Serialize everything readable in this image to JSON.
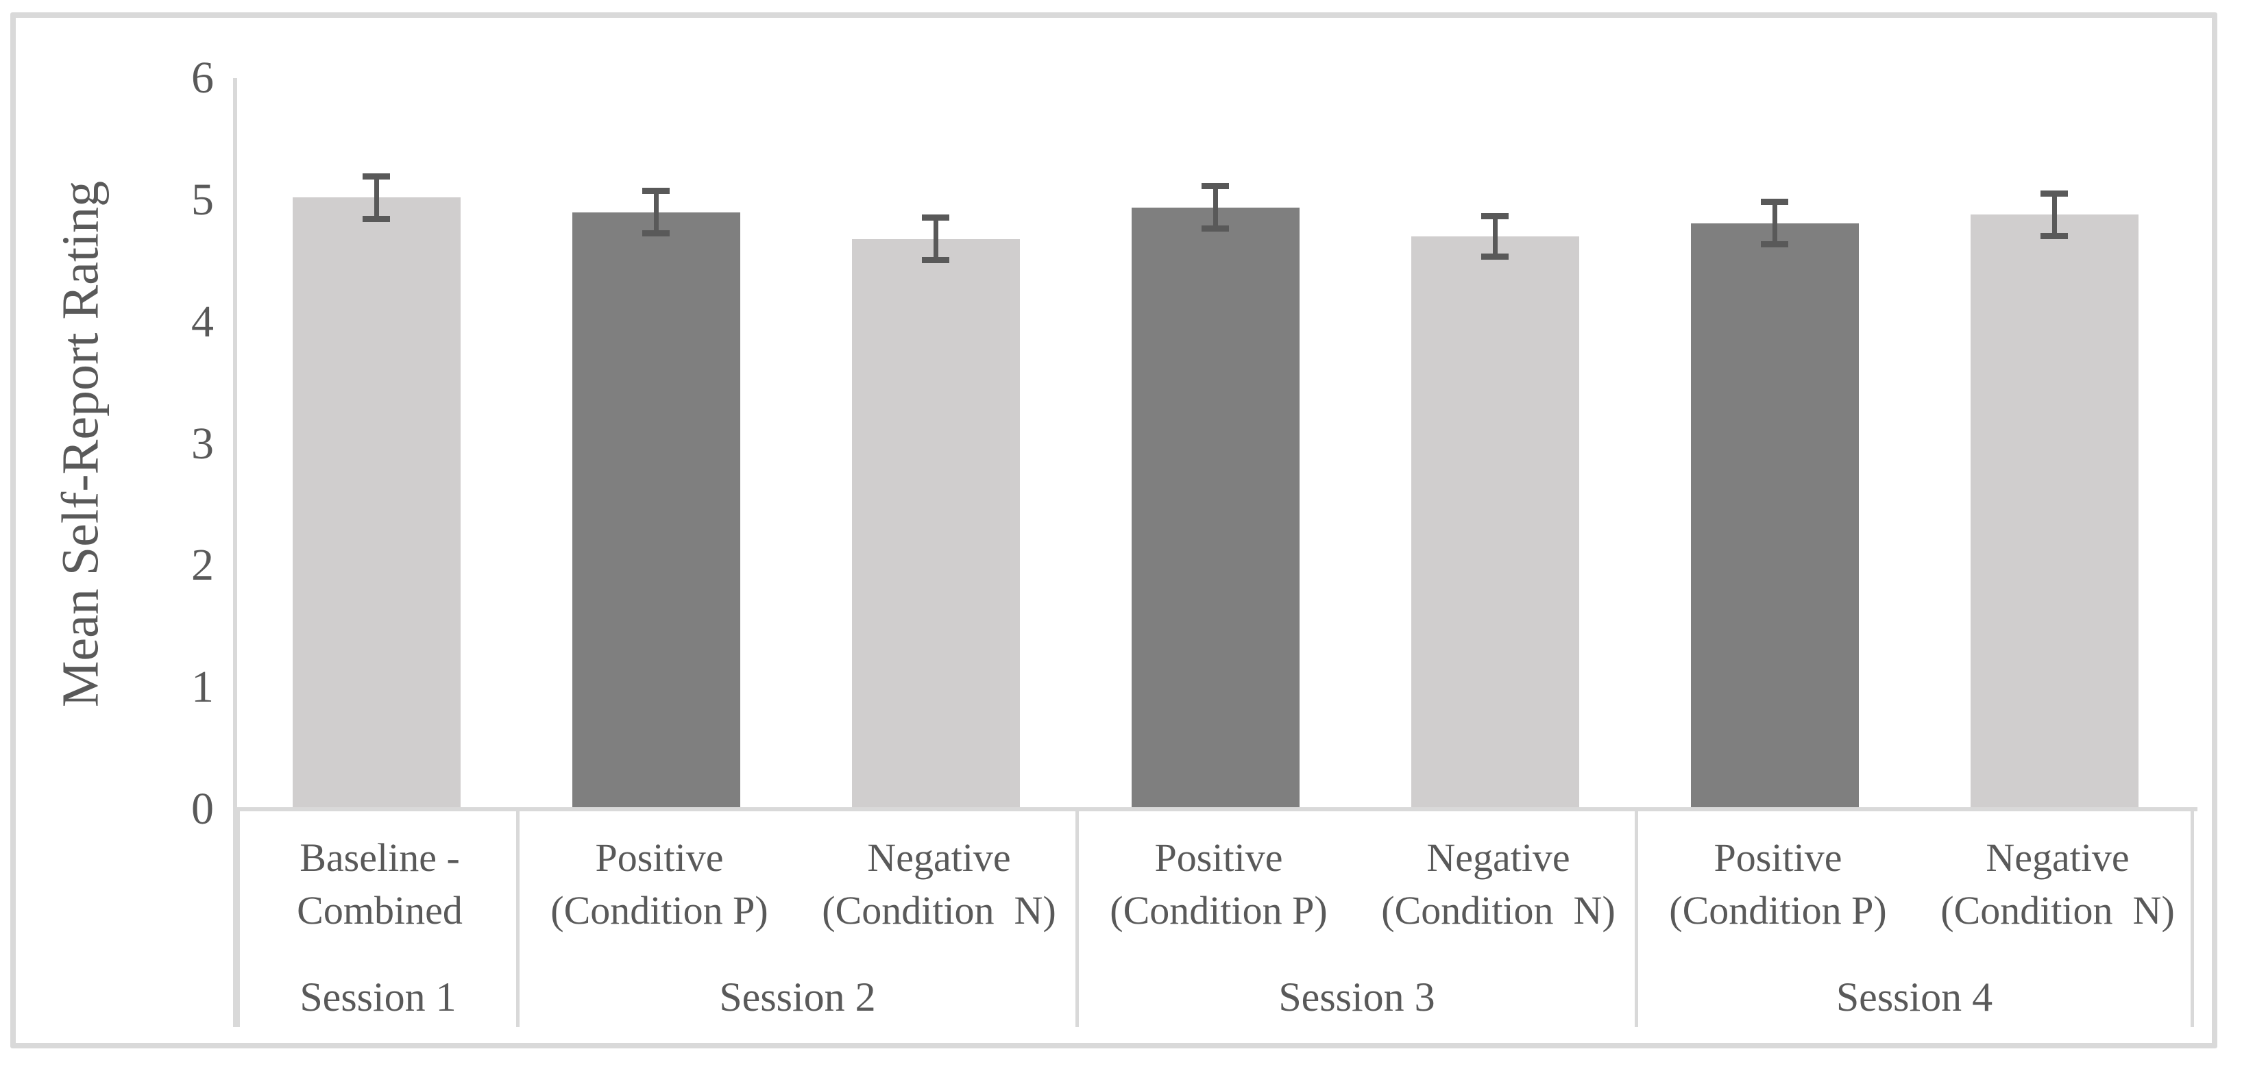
{
  "figure": {
    "background": "#ffffff",
    "border_color": "#d9d9d9"
  },
  "chart_data": {
    "type": "bar",
    "title": "",
    "xlabel": "",
    "ylabel": "Mean Self-Report Rating",
    "ylim": [
      0,
      6
    ],
    "ytick_labels": [
      "0",
      "1",
      "2",
      "3",
      "4",
      "5",
      "6"
    ],
    "grid": false,
    "legend": "none",
    "error_bars": "plus-minus, caps",
    "colors": {
      "bar_light": "#d0cece",
      "bar_dark": "#7f7f7f",
      "error_bar": "#595959",
      "axis_line": "#d9d9d9",
      "text": "#595959"
    },
    "groups": [
      {
        "session_label": "Session 1",
        "bars": [
          {
            "label": "Baseline -\nCombined",
            "value": 5.02,
            "error": 0.2,
            "shade": "light"
          }
        ]
      },
      {
        "session_label": "Session 2",
        "bars": [
          {
            "label": "Positive\n(Condition P)",
            "value": 4.9,
            "error": 0.2,
            "shade": "dark"
          },
          {
            "label": "Negative\n(Condition  N)",
            "value": 4.68,
            "error": 0.2,
            "shade": "light"
          }
        ]
      },
      {
        "session_label": "Session 3",
        "bars": [
          {
            "label": "Positive\n(Condition P)",
            "value": 4.94,
            "error": 0.2,
            "shade": "dark"
          },
          {
            "label": "Negative\n(Condition  N)",
            "value": 4.7,
            "error": 0.19,
            "shade": "light"
          }
        ]
      },
      {
        "session_label": "Session 4",
        "bars": [
          {
            "label": "Positive\n(Condition P)",
            "value": 4.81,
            "error": 0.2,
            "shade": "dark"
          },
          {
            "label": "Negative\n(Condition  N)",
            "value": 4.88,
            "error": 0.2,
            "shade": "light"
          }
        ]
      }
    ]
  }
}
